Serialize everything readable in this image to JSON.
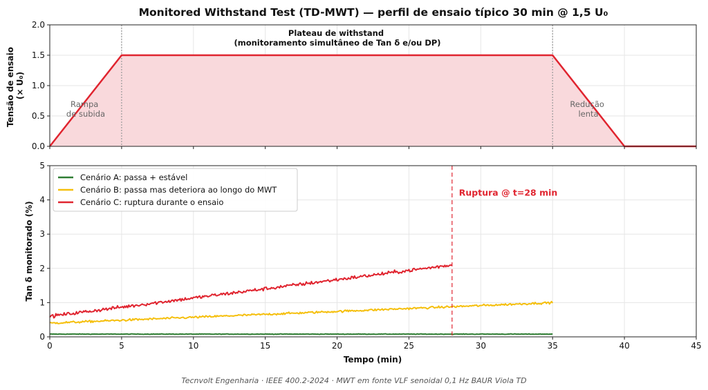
{
  "title": "Monitored Withstand Test (TD-MWT) — perfil de ensaio típico 30 min @ 1,5 U₀",
  "footer": "Tecnvolt Engenharia · IEEE 400.2-2024 · MWT em fonte VLF senoidal 0,1 Hz BAUR Viola TD",
  "colors": {
    "profile": "#e0242f",
    "profile_fill": "#f9d9dc",
    "scenario_a": "#2e7d32",
    "scenario_b": "#f5bf0c",
    "scenario_c": "#e0242f",
    "rupture_line": "#e0242f",
    "boundary_lines": "#999999"
  },
  "chart_data": [
    {
      "type": "area",
      "ylabel_line1": "Tensão de ensaio",
      "ylabel_line2": "(× U₀)",
      "xlim": [
        0,
        45
      ],
      "ylim": [
        0,
        2.0
      ],
      "yticks": [
        "0.0",
        "0.5",
        "1.0",
        "1.5",
        "2.0"
      ],
      "grid": true,
      "x": [
        0,
        5,
        35,
        40,
        45
      ],
      "y": [
        0,
        1.5,
        1.5,
        0,
        0
      ],
      "boundaries": [
        5,
        35
      ],
      "annotations": {
        "ramp_up_line1": "Rampa",
        "ramp_up_line2": "de subida",
        "ramp_down_line1": "Redução",
        "ramp_down_line2": "lenta",
        "plateau_line1": "Plateau de withstand",
        "plateau_line2": "(monitoramento simultâneo de Tan δ e/ou DP)"
      }
    },
    {
      "type": "line",
      "xlabel": "Tempo (min)",
      "ylabel": "Tan δ monitorado (%)",
      "xlim": [
        0,
        45
      ],
      "ylim": [
        0,
        5
      ],
      "xticks": [
        "0",
        "5",
        "10",
        "15",
        "20",
        "25",
        "30",
        "35",
        "40",
        "45"
      ],
      "yticks": [
        "0",
        "1",
        "2",
        "3",
        "4",
        "5"
      ],
      "grid": true,
      "legend_position": "upper-left",
      "series": [
        {
          "name": "Cenário A: passa + estável",
          "x_start": 0,
          "x_end": 35,
          "y_start": 0.08,
          "y_end": 0.08,
          "noise": 0.008
        },
        {
          "name": "Cenário B: passa mas deteriora ao longo do MWT",
          "x_start": 0,
          "x_end": 35,
          "y_start": 0.4,
          "y_end": 1.0,
          "noise": 0.03
        },
        {
          "name": "Cenário C: ruptura durante o ensaio",
          "x_start": 0,
          "x_end": 28,
          "y_start": 0.6,
          "y_end": 2.1,
          "noise": 0.05
        }
      ],
      "rupture": {
        "x": 28,
        "label": "Ruptura @ t=28 min"
      }
    }
  ]
}
